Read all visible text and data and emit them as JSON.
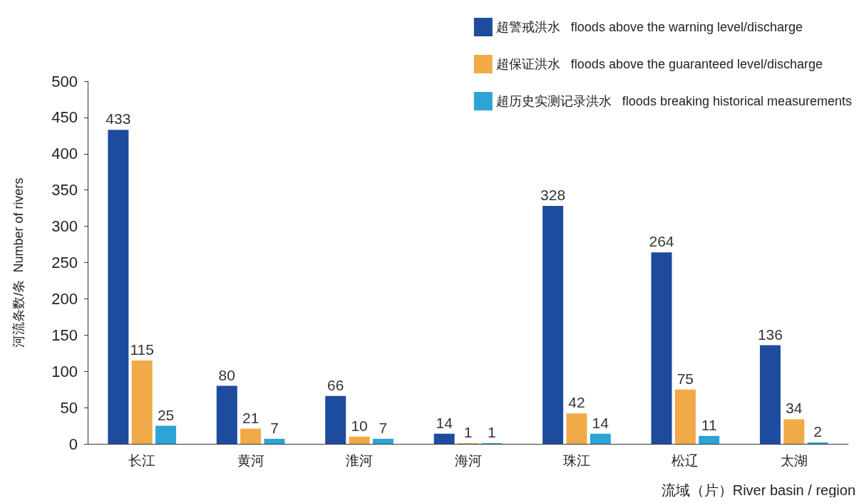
{
  "chart_data": {
    "type": "bar",
    "xlabel": "流域（片）River basin / region",
    "ylabel": "河流条数/条  Number of rivers",
    "categories": [
      "长江",
      "黄河",
      "淮河",
      "海河",
      "珠江",
      "松辽",
      "太湖"
    ],
    "series": [
      {
        "name": "超警戒洪水   floods above the warning level/discharge",
        "color": "#1d4c9e",
        "values": [
          433,
          80,
          66,
          14,
          328,
          264,
          136
        ]
      },
      {
        "name": "超保证洪水   floods above the guaranteed level/discharge",
        "color": "#f0aa48",
        "values": [
          115,
          21,
          10,
          1,
          42,
          75,
          34
        ]
      },
      {
        "name": "超历史实测记录洪水   floods breaking historical measurements",
        "color": "#2ea3d5",
        "values": [
          25,
          7,
          7,
          1,
          14,
          11,
          2
        ]
      }
    ],
    "ylim": [
      0,
      500
    ],
    "yticks": [
      0,
      50,
      100,
      150,
      200,
      250,
      300,
      350,
      400,
      450,
      500
    ],
    "data_labels": true,
    "grid": false,
    "legend": "top right"
  }
}
